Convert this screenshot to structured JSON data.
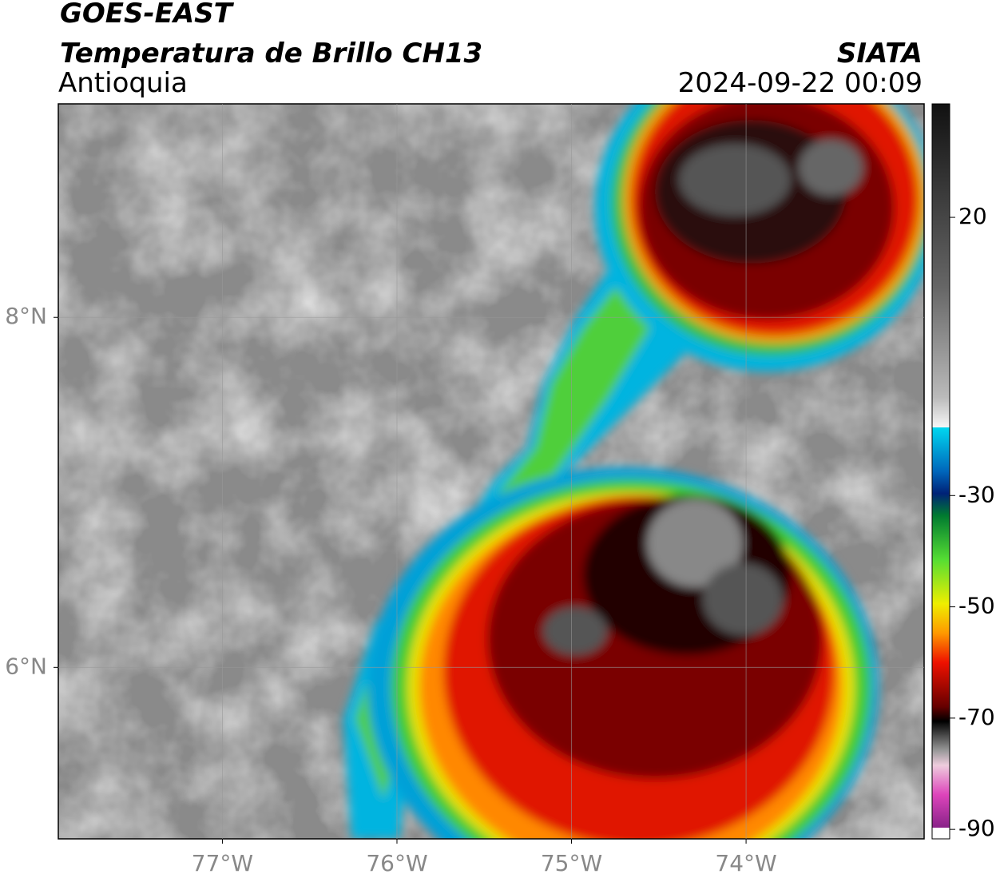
{
  "header": {
    "title": "GOES-EAST",
    "subtitle": "Temperatura de Brillo CH13",
    "region": "Antioquia",
    "source": "SIATA",
    "datetime": "2024-09-22 00:09"
  },
  "map": {
    "lonlim": [
      -77.94,
      -72.98
    ],
    "latlim": [
      5.02,
      9.22
    ],
    "lon_ticks": [
      {
        "value": -77,
        "label": "77°W"
      },
      {
        "value": -76,
        "label": "76°W"
      },
      {
        "value": -75,
        "label": "75°W"
      },
      {
        "value": -74,
        "label": "74°W"
      }
    ],
    "lat_ticks": [
      {
        "value": 8,
        "label": "8°N"
      },
      {
        "value": 6,
        "label": "6°N"
      }
    ]
  },
  "colorbar": {
    "lim": [
      -91.7,
      40.4
    ],
    "ticks": [
      20,
      -30,
      -50,
      -70,
      -90
    ]
  }
}
